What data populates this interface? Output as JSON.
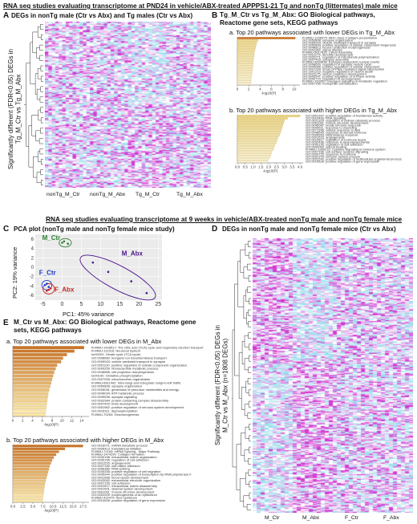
{
  "titles": {
    "top": "RNA seq studies evaluating transcriptome at PND24 in vehicle/ABX-treated APPPS1-21 Tg and nonTg (littermates) male mice",
    "mid": "RNA seq studies evaluating transcriptome at 9 weeks in vehicle/ABX-treated nonTg male and nonTg female mice"
  },
  "panelA": {
    "label": "A",
    "title": "DEGs in nonTg male (Ctr vs Abx) and Tg males (Ctr vs Abx)",
    "ylabel_line1": "Significantly different (FDR<0.05) DEGs in",
    "ylabel_line2": "Tg_M_Ctr vs Tg_M_Abx",
    "columns": [
      "nonTg_M_Ctr",
      "nonTg_M_Abx",
      "Tg_M_Ctr",
      "Tg_M_Abx"
    ]
  },
  "panelB": {
    "label": "B",
    "title_line1": "Tg_M_Ctr vs Tg_M_Abx: GO Biological pathways,",
    "title_line2": "Reactome gene sets, KEGG pathways",
    "sub_a": "a. Top 20 pathways associated with lower DEGs in Tg_M_Abx",
    "sub_b": "b. Top 20 pathways associated with higher DEGs in Tg_M_Abx",
    "xlabel": "-log10(P)",
    "ticks_a": [
      "0",
      "2",
      "4",
      "6",
      "8",
      "10"
    ],
    "ticks_b": [
      "0.0",
      "0.5",
      "1.0",
      "1.5",
      "2.0",
      "2.5",
      "3.0",
      "3.5",
      "4.0"
    ],
    "terms_a": [
      "R-MMU-1236975: MHC class II antigen presentation",
      "GO:0050808: synapse organization",
      "GO:0099003: vesicle-mediated transport in synapse",
      "GO:0050804: positive regulation of cellular component biogenesis",
      "GO:0048813: neuron projection morphogenesis",
      "GO:0051962: signal release",
      "R-MMU-5617833: Cilium Assembly",
      "GO:0031175: dendrite development",
      "GO:0032271: regulation of microtubule polymerization",
      "GO:0007416: synapse assembly",
      "R-MMU-9634638: Estrogen-dependent nuclear events",
      "GO:0098693: regulation of synaptic vesicle cycle",
      "GO:0044089: positive regulation of cellular component",
      "GO:0007264: small GTPase mediated signal transduction",
      "GO:1901215: negative regulation of neuron death",
      "GO:0031175: neuron projection development",
      "GO:0043547: positive regulation of GTPase activity",
      "GO:0050770: regulation of axonogenesis",
      "R-MMU-163359: Glucagon signaling in metabolic regulation",
      "GO:0007156: homophilic cell adhesion"
    ],
    "terms_b": [
      "GO:0051347: positive regulation of transferase activity",
      "GO:0010469: RNA signaling",
      "GO:0031329: regulation of cellular catabolic process",
      "GO:0061061: muscle structure development",
      "GO:0045087: innate immune response",
      "GO:0009611: response to wounding",
      "GO:0071396: cellular response to lipid",
      "GO:0048545: response to steroid hormone",
      "GO:0006954: inflammatory response",
      "GO:0001525: angiogenesis",
      "GO:0010817: regulation of hormone levels",
      "GO:0032496: response to lipopolysaccharide",
      "GO:0030155: regulation of cell adhesion",
      "GO:0042060: wound healing",
      "R-MMU-1280215: Cytokine Signaling in Immune system",
      "GO:0007166: cell surface receptor signaling",
      "GO:0009725: response to hormone",
      "GO:0002376: immune system process",
      "GO:0051240: positive regulation of multicellular organismal process",
      "GO:0010628: positive regulation of gene expression"
    ]
  },
  "panelC": {
    "label": "C",
    "title": "PCA plot (nonTg male and nonTg female mice study)",
    "xlabel": "PC1: 45% variance",
    "ylabel": "PC2: 19% variance",
    "groups": {
      "m_ctr": "M_Ctr",
      "m_abx": "M_Abx",
      "f_ctr": "F_Ctr",
      "f_abx": "F_Abx"
    },
    "xticks": [
      "-5",
      "0",
      "5",
      "10",
      "15",
      "20",
      "25"
    ],
    "yticks": [
      "-6",
      "-4",
      "-2",
      "0",
      "2",
      "4",
      "6"
    ]
  },
  "panelD": {
    "label": "D",
    "title": "DEGs in nonTg male and nonTg female mice (Ctr vs Abx)",
    "ylabel_line1": "Significantly different (FDR<0.05) DEGs in",
    "ylabel_line2": "M_Ctr vs M_Abx (n=1808 DEGs)",
    "columns": [
      "M_Ctr",
      "M_Abx",
      "F_Ctr",
      "F_Abx"
    ]
  },
  "panelE": {
    "label": "E",
    "title_line1": "M_Ctr vs M_Abx: GO Biological pathways, Reactome gene",
    "title_line2": "sets, KEGG pathways",
    "sub_a": "a. Top 20 pathways associated with lower DEGs in M_Abx",
    "sub_b": "b. Top 20 pathways associated with higher DEGs in M_Abx",
    "xlabel": "-log10(P)",
    "ticks_a": [
      "0",
      "2",
      "4",
      "6",
      "8",
      "10",
      "12",
      "14"
    ],
    "ticks_b": [
      "0.0",
      "2.5",
      "5.0",
      "7.5",
      "10.0",
      "12.5",
      "15.0",
      "17.5"
    ],
    "terms_a": [
      "R-MMU-1428517: The citric acid (TCA) cycle and respiratory electron transport",
      "R-MMU-112316: Neuronal System",
      "ko00020: Citrate cycle (TCA cycle)",
      "GO:0098660: inorganic ion transmembrane transport",
      "GO:0099003: vesicle-mediated transport in synapse",
      "GO:0051130: positive regulation of cellular component organization",
      "GO:0009259: ribonucleotide metabolic process",
      "GO:0048858: cell projection morphogenesis",
      "ko00190: Oxidative phosphorylation",
      "GO:0007005: mitochondrion organization",
      "R-MMU-6811442: Intra-Golgi and retrograde Golgi-to-ER traffic",
      "GO:0050808: synapse organization",
      "GO:0006091: generation of precursor metabolites and energy",
      "GO:0046034: ATP metabolic process",
      "GO:0099536: synaptic signaling",
      "GO:0032984: protein-containing complex disassembly",
      "GO:0007420: brain development",
      "GO:0051962: positive regulation of nervous system development",
      "GO:0016311: dephosphorylation",
      "R-MMU-70263: Gluconeogenesis"
    ],
    "terms_b": [
      "GO:0016071: mRNA metabolic process",
      "GO:0006413: translational initiation",
      "R-MMU-72163: mRNA Splicing - Major Pathway",
      "R-MMU-1474290: Collagen formation",
      "GO:0030198: extracellular matrix organization",
      "GO:0030155: regulation of cell adhesion",
      "GO:0001525: angiogenesis",
      "GO:0007160: cell-matrix adhesion",
      "GO:0008380: RNA splicing",
      "GO:0030335: positive regulation of cell migration",
      "GO:0045944: positive regulation of transcription by RNA polymerase II",
      "GO:0001568: blood vessel development",
      "GO:0043062: extracellular structure organization",
      "GO:0007155: cell adhesion",
      "GO:0022617: extracellular matrix disassembly",
      "GO:0001501: skeletal system development",
      "GO:0061061: muscle structure development",
      "GO:0002009: morphogenesis of an epithelium",
      "R-MMU-422475: Axon guidance",
      "GO:0010628: positive regulation of gene expression"
    ]
  },
  "chart_data": [
    {
      "type": "bar",
      "title": "Top 20 pathways associated with lower DEGs in Tg_M_Abx",
      "xlabel": "-log10(P)",
      "xlim": [
        0,
        11
      ],
      "values": [
        10.2,
        3.6,
        3.4,
        3.3,
        3.2,
        3.1,
        3.0,
        2.95,
        2.9,
        2.85,
        2.8,
        2.75,
        2.7,
        2.65,
        2.6,
        2.55,
        2.5,
        2.45,
        2.4,
        2.35
      ]
    },
    {
      "type": "bar",
      "title": "Top 20 pathways associated with higher DEGs in Tg_M_Abx",
      "xlabel": "-log10(P)",
      "xlim": [
        0,
        4.2
      ],
      "values": [
        4.0,
        3.2,
        3.0,
        2.95,
        2.9,
        2.85,
        2.8,
        2.75,
        2.7,
        2.6,
        2.55,
        2.5,
        2.4,
        2.35,
        2.3,
        2.2,
        2.15,
        2.1,
        2.0,
        1.9
      ]
    },
    {
      "type": "bar",
      "title": "Top 20 pathways associated with lower DEGs in M_Abx",
      "xlabel": "-log10(P)",
      "xlim": [
        0,
        15.5
      ],
      "values": [
        14.5,
        12.5,
        11.0,
        10.2,
        9.8,
        9.0,
        8.7,
        8.4,
        8.2,
        8.0,
        7.8,
        7.6,
        7.4,
        7.2,
        7.1,
        7.0,
        6.9,
        6.8,
        6.7,
        6.6
      ]
    },
    {
      "type": "bar",
      "title": "Top 20 pathways associated with higher DEGs in M_Abx",
      "xlabel": "-log10(P)",
      "xlim": [
        0,
        19
      ],
      "values": [
        17.5,
        13.0,
        11.5,
        10.8,
        10.2,
        9.8,
        9.5,
        9.2,
        9.0,
        8.8,
        8.6,
        8.4,
        8.2,
        8.0,
        7.9,
        7.8,
        7.7,
        7.6,
        7.5,
        7.4
      ]
    },
    {
      "type": "scatter",
      "title": "PCA plot (nonTg male and nonTg female mice study)",
      "xlabel": "PC1: 45% variance",
      "ylabel": "PC2: 19% variance",
      "xlim": [
        -7,
        26
      ],
      "ylim": [
        -7,
        7
      ],
      "series": [
        {
          "name": "M_Ctr",
          "color": "#2e7d32",
          "x": [
            0.5,
            1.5,
            0.0
          ],
          "y": [
            5.5,
            5.0,
            5.2
          ]
        },
        {
          "name": "M_Abx",
          "color": "#4a148c",
          "x": [
            8.0,
            12.0,
            18.0,
            22.0
          ],
          "y": [
            1.0,
            -1.0,
            -3.0,
            -5.5
          ]
        },
        {
          "name": "F_Ctr",
          "color": "#1a3cc8",
          "x": [
            -4.5,
            -3.5,
            -4.0
          ],
          "y": [
            -3.8,
            -4.2,
            -3.5
          ]
        },
        {
          "name": "F_Abx",
          "color": "#c62828",
          "x": [
            -4.0,
            -3.0,
            -3.5
          ],
          "y": [
            -5.0,
            -4.5,
            -4.8
          ]
        }
      ]
    }
  ]
}
